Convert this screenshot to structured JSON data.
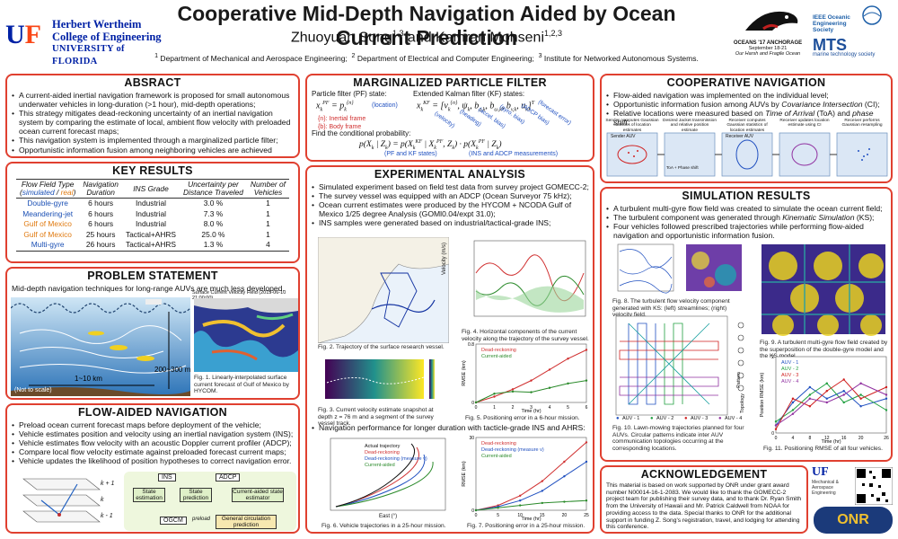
{
  "header": {
    "title": "Cooperative Mid-Depth Navigation Aided by Ocean Current Prediction",
    "authors": "Zhuoyuan Song1,3 and Kamran Mohseni1,2,3",
    "affiliations": "1 Department of Mechanical and Aerospace Engineering;  2 Department of Electrical and Computer Engineering;  3 Institute for Networked Autonomous Systems.",
    "uf_line1": "Herbert Wertheim",
    "uf_line2": "College of Engineering",
    "uf_line3": "UNIVERSITY of FLORIDA",
    "conf_line1": "OCEANS '17 ANCHORAGE",
    "conf_line2": "September 18-21",
    "conf_line3": "Our Harsh and Fragile Ocean",
    "ieee_oes": "IEEE Oceanic Engineering Society",
    "mts": "MTS",
    "mts_sub": "marine technology society"
  },
  "abstract": {
    "title": "ABSRACT",
    "items": [
      "A current-aided inertial navigation framework is proposed for small autonomous underwater vehicles in long-duration (>1 hour), mid-depth operations;",
      "This strategy mitigates dead-reckoning uncertainty of an inertial navigation system by comparing the estimate of local, ambient flow velocity with preloaded ocean current forecast maps;",
      "This navigation system is implemented through a marginalized particle filter;",
      "Opportunistic information fusion among neighboring vehicles are achieved through covariance intersection to further improve the navigation accuracy."
    ]
  },
  "key_results": {
    "title": "KEY RESULTS",
    "headers": [
      "Flow Field Type (simulated / real)",
      "Navigation Duration",
      "INS Grade",
      "Uncertainty per Distance Traveled",
      "Number of Vehicles"
    ],
    "rows": [
      {
        "type": "Double-gyre",
        "color": "#1a4fb4",
        "duration": "6 hours",
        "grade": "Industrial",
        "unc": "3.0 %",
        "n": "1"
      },
      {
        "type": "Meandering-jet",
        "color": "#1a4fb4",
        "duration": "6 hours",
        "grade": "Industrial",
        "unc": "7.3 %",
        "n": "1"
      },
      {
        "type": "Gulf of Mexico",
        "color": "#e07a10",
        "duration": "6 hours",
        "grade": "Industrial",
        "unc": "8.0 %",
        "n": "1"
      },
      {
        "type": "Gulf of Mexico",
        "color": "#e07a10",
        "duration": "25 hours",
        "grade": "Tactical+AHRS",
        "unc": "25.0 %",
        "n": "1"
      },
      {
        "type": "Multi-gyre",
        "color": "#1a4fb4",
        "duration": "26 hours",
        "grade": "Tactical+AHRS",
        "unc": "1.3 %",
        "n": "4"
      }
    ]
  },
  "problem": {
    "title": "PROBLEM STATEMENT",
    "text": "Mid-depth navigation techniques for long-range AUVs are much less developed.",
    "depth_label": "200~300 m",
    "range_label": "1~10 km",
    "scale_note": "(Not to scale)",
    "map_title": "Surface Current Velocity Field (2015-06-10 21:00:00)",
    "fig1_caption": "Fig. 1. Linearly-interpolated surface current forecast of Gulf of Mexico by HYCOM."
  },
  "flow_aided": {
    "title": "FLOW-AIDED NAVIGATION",
    "items": [
      "Preload ocean current forecast maps before deployment of the vehicle;",
      "Vehicle estimates position and velocity using an inertial navigation system (INS);",
      "Vehicle estimates flow velocity with an acoustic Doppler current profiler (ADCP);",
      "Compare local flow velocity estimate against preloaded forecast current maps;",
      "Vehicle updates the likelihood of position hypotheses to correct navigation error."
    ],
    "diag": {
      "ins": "INS",
      "adcp": "ADCP",
      "state_est": "State estimation",
      "state_pred": "State prediction",
      "current_aided": "Current-aided state estimator",
      "ogcm": "OGCM",
      "preload": "preload",
      "gen_circ": "General circulation prediction",
      "k1": "k + 1",
      "k0": "k",
      "km1": "k - 1"
    }
  },
  "mpf": {
    "title": "MARGINALIZED PARTICLE FILTER",
    "pf_label": "Particle filter (PF) state:",
    "kf_label": "Extended Kalman filter (KF) states:",
    "location": "(location)",
    "inertial": "{n}: Inertial frame",
    "body": "{b}: Body frame",
    "velocity": "(velocity)",
    "heading": "(heading)",
    "accel_bias": "(accel. bias)",
    "gyro_bias": "(gyro. bias)",
    "adcp_bias": "(ADCP bias)",
    "forecast_error": "(forecast error)",
    "conditional": "Find the conditional probability:",
    "pf_kf_states": "(PF and KF states)",
    "ins_adcp": "(INS and ADCP measurements)"
  },
  "experimental": {
    "title": "EXPERIMENTAL ANALYSIS",
    "items": [
      "Simulated experiment based on field test data from survey project GOMECC-2;",
      "The survey vessel was equipped with an ADCP (Ocean Surveyor 75 kHz);",
      "Ocean current estimates were produced by the HYCOM + NCODA Gulf of Mexico 1/25 degree Analysis (GOMl0.04/expt 31.0);",
      "INS samples were generated based on industrial/tactical-grade INS;"
    ],
    "fig2": "Fig. 2. Trajectory of the surface research vessel.",
    "fig3": "Fig. 3. Current velocity estimate snapshot at depth z = 76 m and a segment of the survey vessel track.",
    "fig4": "Fig. 4. Horizontal components of the current velocity along the trajectory of the survey vessel.",
    "fig5": "Fig. 5. Positioning error in a 6-hour mission.",
    "longer": "Navigation performance for longer duration with tacticle-grade INS and AHRS:",
    "fig6": "Fig. 6. Vehicle trajectories in a 25-hour mission.",
    "fig7": "Fig. 7. Positioning error in a 25-hour mission.",
    "legend_dr": "Dead-reckoning",
    "legend_ca": "Current-aided",
    "legend_pd": "Particle distribution (3σ)",
    "legend_actual": "Actual trajectory",
    "legend_drm": "Dead-reckoning (measure v)",
    "axis_north": "North (°)",
    "axis_east": "East (°)",
    "axis_time": "Time (hr)",
    "axis_rmse": "RMSE (km)",
    "axis_vel": "Velocity (m/s)"
  },
  "cooperative": {
    "title": "COOPERATIVE NAVIGATION",
    "items": [
      "Flow-aided navigation was implemented on the individual level;",
      "Opportunistic information fusion among AUVs by Covariance Intersection (CI);",
      "Relative locations were measured based on Time of Arrival (ToA) and phase shift."
    ],
    "steps": [
      "Sender computes Gaussian statistics of location estimates",
      "Desired Jacket transmission and relative position estimate",
      "Receiver computes Gaussian statistics of location estimates",
      "Receiver updates location estimate using CI",
      "Receiver performs Gaussian resampling"
    ],
    "sender": "Sender AUV",
    "receiver": "Receiver AUV",
    "toa": "ToA + Phase shift"
  },
  "simulation": {
    "title": "SIMULATION RESULTS",
    "items": [
      "A turbulent multi-gyre flow field was created to simulate the ocean current field;",
      "The turbulent component was generated through Kinematic Simulation (KS);",
      "Four vehicles followed prescribed trajectories while performing flow-aided navigation and opportunistic information fusion."
    ],
    "fig8": "Fig. 8. The turbulent flow velocity component generated with KS: (left) streamlines; (right) velocity field.",
    "fig9": "Fig. 9. A turbulent multi-gyre flow field created by the superposition of the double-gyre model and the KS model.",
    "fig10": "Fig. 10. Lawn-mowing trajectories planned for four AUVs. Circular patterns indicate inter AUV communication topologies occurring at the corresponding locations.",
    "fig11": "Fig. 11. Positioning RMSE of all four vehicles.",
    "auv_labels": [
      "AUV - 1",
      "AUV - 2",
      "AUV - 3",
      "AUV - 4"
    ],
    "auv_colors": [
      "#2050c0",
      "#20a040",
      "#d02020",
      "#9030a0"
    ],
    "pattern": "Pattern",
    "topology": "Topology",
    "axis_x": "x (m)",
    "axis_y": "y (m)",
    "axis_time": "Time (hr)",
    "axis_rmse": "Position RMSE (km)"
  },
  "ack": {
    "title": "ACKNOWLEDGEMENT",
    "text": "This material is based on work supported by ONR under grant award number N00014-16-1-2083. We would like to thank the GOMECC-2 project team for publishing their survey data, and to thank Dr. Ryan Smith from the University of Hawaii and Mr. Patrick Caldwell from NOAA for providing access to the data. Special thanks to ONR for the additional support in funding Z. Song's registration, travel, and lodging for attending this conference.",
    "mae_line1": "Mechanical &",
    "mae_line2": "Aerospace",
    "mae_line3": "Engineering",
    "onr": "ONR"
  },
  "chart_data": [
    {
      "type": "line",
      "title": "",
      "xlabel": "Time (hr)",
      "ylabel": "RMSE (km)",
      "xlim": [
        0,
        6
      ],
      "ylim": [
        0,
        0.8
      ],
      "x": [
        0,
        1,
        2,
        3,
        4,
        5,
        6
      ],
      "series": [
        {
          "name": "Dead-reckoning",
          "values": [
            0.0,
            0.08,
            0.18,
            0.3,
            0.45,
            0.6,
            0.72
          ]
        },
        {
          "name": "Current-aided",
          "values": [
            0.0,
            0.12,
            0.15,
            0.14,
            0.2,
            0.26,
            0.3
          ]
        }
      ]
    },
    {
      "type": "line",
      "title": "",
      "xlabel": "Time (hr)",
      "ylabel": "RMSE (km)",
      "xlim": [
        0,
        25
      ],
      "ylim": [
        0,
        30
      ],
      "x": [
        0,
        5,
        10,
        15,
        20,
        25
      ],
      "series": [
        {
          "name": "Dead-reckoning",
          "values": [
            0,
            2,
            6,
            12,
            20,
            28
          ]
        },
        {
          "name": "Dead-reckoning (measure v)",
          "values": [
            0,
            1.5,
            4,
            8,
            14,
            20
          ]
        },
        {
          "name": "Current-aided",
          "values": [
            0,
            1,
            2,
            3,
            3.5,
            4
          ]
        }
      ]
    },
    {
      "type": "line",
      "title": "",
      "xlabel": "Time (hr)",
      "ylabel": "Position RMSE (km)",
      "xlim": [
        0,
        26
      ],
      "ylim": [
        0,
        2
      ],
      "x": [
        0,
        4,
        8,
        12,
        16,
        20,
        26
      ],
      "series": [
        {
          "name": "AUV - 1",
          "values": [
            0.2,
            0.8,
            1.2,
            0.9,
            1.1,
            0.7,
            0.9
          ]
        },
        {
          "name": "AUV - 2",
          "values": [
            0.3,
            0.6,
            1.0,
            1.3,
            0.8,
            1.0,
            0.6
          ]
        },
        {
          "name": "AUV - 3",
          "values": [
            0.1,
            0.9,
            0.7,
            1.1,
            1.4,
            0.9,
            1.2
          ]
        },
        {
          "name": "AUV - 4",
          "values": [
            0.2,
            0.5,
            0.9,
            0.8,
            1.0,
            1.3,
            1.0
          ]
        }
      ]
    }
  ]
}
